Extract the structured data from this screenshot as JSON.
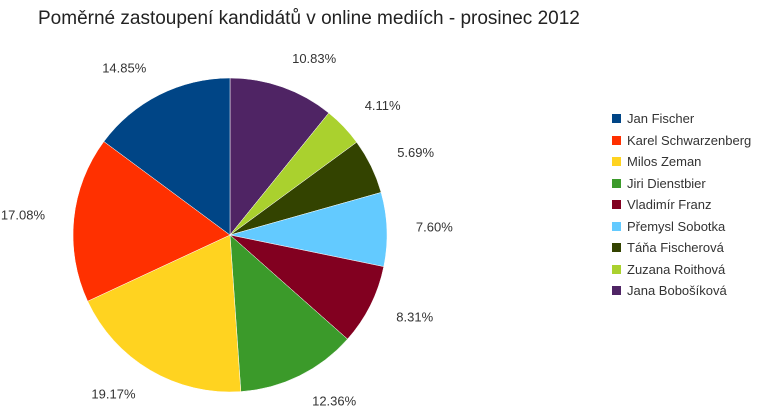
{
  "chart_data": {
    "type": "pie",
    "title": "Poměrné zastoupení kandidátů v online mediích - prosinec 2012",
    "legend_position": "right",
    "slices": [
      {
        "name": "Jana Bobošíková",
        "value": 10.83,
        "label": "10.83%",
        "color": "#4f2464"
      },
      {
        "name": "Zuzana Roithová",
        "value": 4.11,
        "label": "4.11%",
        "color": "#aad12e"
      },
      {
        "name": "Táňa Fischerová",
        "value": 5.69,
        "label": "5.69%",
        "color": "#334300"
      },
      {
        "name": "Přemysl Sobotka",
        "value": 7.6,
        "label": "7.60%",
        "color": "#63caff"
      },
      {
        "name": "Vladimír Franz",
        "value": 8.31,
        "label": "8.31%",
        "color": "#820020"
      },
      {
        "name": "Jiri Dienstbier",
        "value": 12.36,
        "label": "12.36%",
        "color": "#3b9a2a"
      },
      {
        "name": "Milos Zeman",
        "value": 19.17,
        "label": "19.17%",
        "color": "#ffd320"
      },
      {
        "name": "Karel Schwarzenberg",
        "value": 17.08,
        "label": "17.08%",
        "color": "#ff3000"
      },
      {
        "name": "Jan Fischer",
        "value": 14.85,
        "label": "14.85%",
        "color": "#004586"
      }
    ],
    "legend": [
      {
        "name": "Jan Fischer",
        "color": "#004586"
      },
      {
        "name": "Karel Schwarzenberg",
        "color": "#ff3000"
      },
      {
        "name": "Milos Zeman",
        "color": "#ffd320"
      },
      {
        "name": "Jiri Dienstbier",
        "color": "#3b9a2a"
      },
      {
        "name": "Vladimír Franz",
        "color": "#820020"
      },
      {
        "name": "Přemysl Sobotka",
        "color": "#63caff"
      },
      {
        "name": "Táňa Fischerová",
        "color": "#334300"
      },
      {
        "name": "Zuzana Roithová",
        "color": "#aad12e"
      },
      {
        "name": "Jana Bobošíková",
        "color": "#4f2464"
      }
    ]
  }
}
